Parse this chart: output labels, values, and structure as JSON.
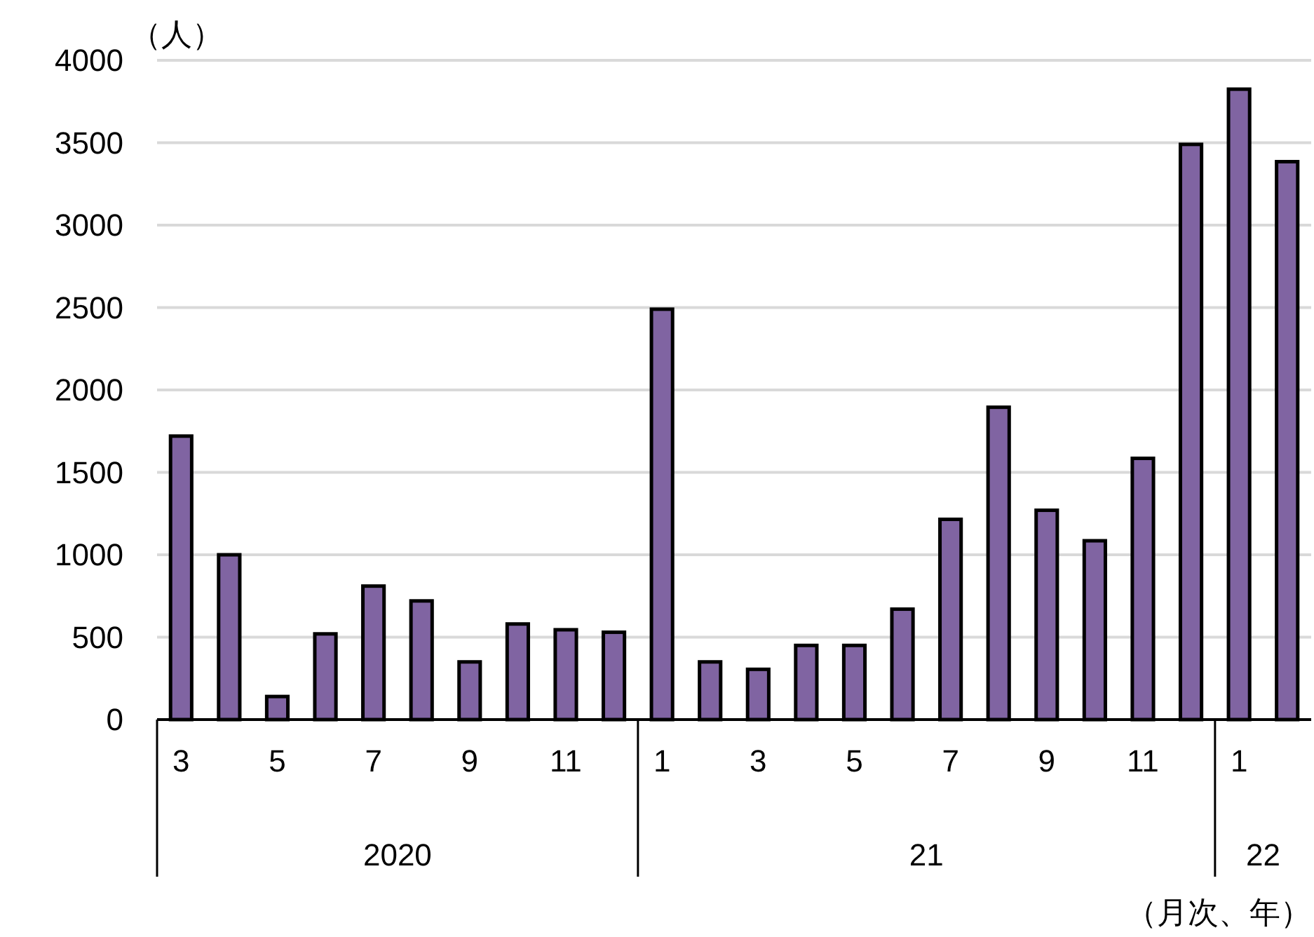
{
  "chart_data": {
    "type": "bar",
    "ylabel": "（人）",
    "xlabel": "（月次、年）",
    "categories": [
      "3",
      null,
      "5",
      null,
      "7",
      null,
      "9",
      null,
      "11",
      null,
      "1",
      null,
      "3",
      null,
      "5",
      null,
      "7",
      null,
      "9",
      null,
      "11",
      null,
      "1",
      null
    ],
    "values": [
      1720,
      1000,
      140,
      520,
      810,
      720,
      350,
      580,
      545,
      530,
      2490,
      350,
      305,
      450,
      450,
      670,
      1215,
      1895,
      1270,
      1085,
      1585,
      3490,
      3825,
      3385
    ],
    "color": "#8064a2",
    "ylim": [
      0,
      4000
    ],
    "yticks": [
      0,
      500,
      1000,
      1500,
      2000,
      2500,
      3000,
      3500,
      4000
    ],
    "grid": "y",
    "annotations": [
      "2020",
      "21",
      "22"
    ]
  }
}
